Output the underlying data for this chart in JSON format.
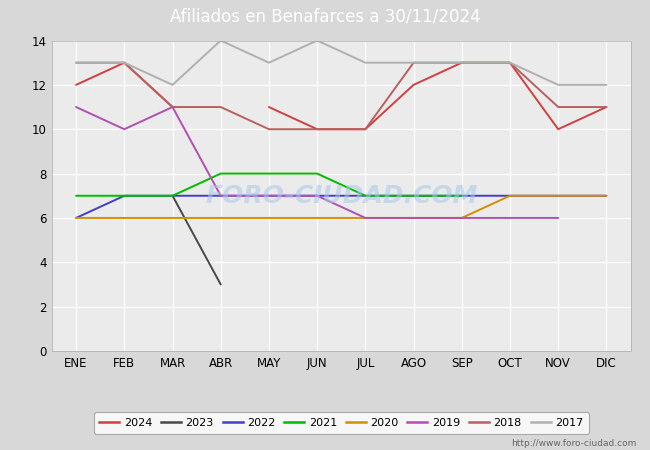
{
  "title": "Afiliados en Benafarces a 30/11/2024",
  "background_color": "#d8d8d8",
  "plot_bg_color": "#ebebeb",
  "header_bg_color": "#4d7cc7",
  "url": "http://www.foro-ciudad.com",
  "months": [
    "ENE",
    "FEB",
    "MAR",
    "ABR",
    "MAY",
    "JUN",
    "JUL",
    "AGO",
    "SEP",
    "OCT",
    "NOV",
    "DIC"
  ],
  "ylim": [
    0,
    14
  ],
  "yticks": [
    0,
    2,
    4,
    6,
    8,
    10,
    12,
    14
  ],
  "series_data": {
    "2024": [
      12,
      13,
      11,
      null,
      11,
      10,
      10,
      12,
      13,
      13,
      10,
      11
    ],
    "2023": [
      null,
      null,
      7,
      3,
      null,
      null,
      null,
      null,
      null,
      null,
      null,
      null
    ],
    "2022": [
      6,
      7,
      7,
      7,
      7,
      7,
      7,
      7,
      7,
      7,
      7,
      7
    ],
    "2021": [
      7,
      7,
      7,
      8,
      8,
      8,
      7,
      7,
      7,
      null,
      null,
      null
    ],
    "2020": [
      6,
      6,
      6,
      6,
      6,
      6,
      6,
      6,
      6,
      7,
      7,
      7
    ],
    "2019": [
      11,
      10,
      11,
      7,
      7,
      7,
      6,
      6,
      6,
      6,
      6,
      null
    ],
    "2018": [
      13,
      13,
      11,
      11,
      10,
      10,
      10,
      13,
      13,
      13,
      11,
      11
    ],
    "2017": [
      13,
      13,
      12,
      14,
      13,
      14,
      13,
      13,
      13,
      13,
      12,
      12
    ]
  },
  "year_colors": {
    "2024": "#d04040",
    "2023": "#484848",
    "2022": "#4040c0",
    "2021": "#00bb00",
    "2020": "#d09000",
    "2019": "#b050b0",
    "2018": "#b86060",
    "2017": "#b0b0b0"
  },
  "legend_years": [
    "2024",
    "2023",
    "2022",
    "2021",
    "2020",
    "2019",
    "2018",
    "2017"
  ]
}
